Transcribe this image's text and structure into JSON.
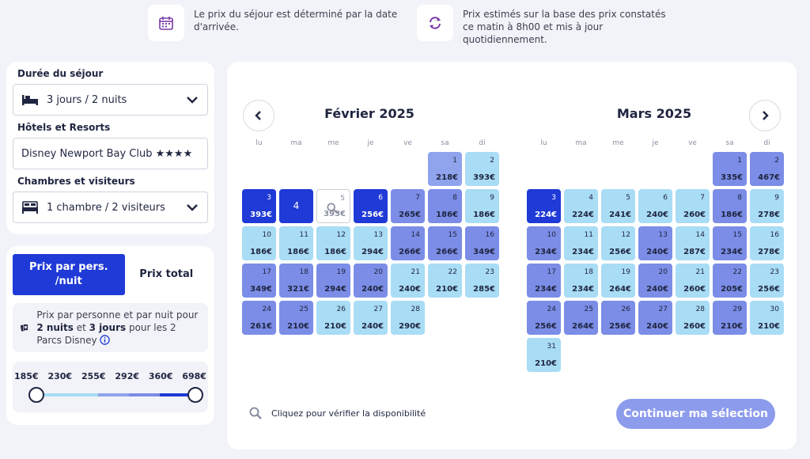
{
  "info": {
    "arrival_text": "Le prix du séjour est déterminé par la date d'arrivée.",
    "estimate_text": "Prix estimés sur la base des prix constatés ce matin à 8h00 et mis à jour quotidiennement."
  },
  "filters": {
    "duration_label": "Durée du séjour",
    "duration_value": "3 jours / 2 nuits",
    "hotel_label": "Hôtels et Resorts",
    "hotel_value": "Disney Newport Bay Club ★★★★",
    "rooms_label": "Chambres et visiteurs",
    "rooms_value": "1 chambre / 2 visiteurs"
  },
  "pricing": {
    "per_person_label": "Prix par pers. /nuit",
    "total_label": "Prix total",
    "explain_prefix": "Prix par personne et par nuit pour ",
    "explain_nights": "2 nuits",
    "explain_mid": " et ",
    "explain_days": "3 jours",
    "explain_suffix": " pour les 2 Parcs Disney",
    "slider_ticks": [
      "185€",
      "230€",
      "255€",
      "292€",
      "360€",
      "698€"
    ],
    "slider_range": [
      185,
      698
    ],
    "slider_colors": [
      "#a9dcf5",
      "#a9dcf5",
      "#8fa4ec",
      "#7b8de6",
      "#1f3ad6"
    ]
  },
  "calendar": {
    "weekdays": [
      "lu",
      "ma",
      "me",
      "je",
      "ve",
      "sa",
      "di"
    ],
    "months": [
      {
        "title": "Février 2025",
        "offset": 5,
        "days": [
          {
            "d": "1",
            "p": "218€",
            "c": "c2"
          },
          {
            "d": "2",
            "p": "393€",
            "c": "c1"
          },
          {
            "d": "3",
            "p": "393€",
            "c": "c4"
          },
          {
            "d": "4",
            "p": "",
            "c": "c4 big"
          },
          {
            "d": "5",
            "p": "393€",
            "c": "sel"
          },
          {
            "d": "6",
            "p": "256€",
            "c": "c4"
          },
          {
            "d": "7",
            "p": "265€",
            "c": "c3"
          },
          {
            "d": "8",
            "p": "186€",
            "c": "c3"
          },
          {
            "d": "9",
            "p": "186€",
            "c": "c1"
          },
          {
            "d": "10",
            "p": "186€",
            "c": "c1"
          },
          {
            "d": "11",
            "p": "186€",
            "c": "c1"
          },
          {
            "d": "12",
            "p": "186€",
            "c": "c1"
          },
          {
            "d": "13",
            "p": "294€",
            "c": "c1"
          },
          {
            "d": "14",
            "p": "266€",
            "c": "c3"
          },
          {
            "d": "15",
            "p": "266€",
            "c": "c3"
          },
          {
            "d": "16",
            "p": "349€",
            "c": "c3"
          },
          {
            "d": "17",
            "p": "349€",
            "c": "c3"
          },
          {
            "d": "18",
            "p": "321€",
            "c": "c3"
          },
          {
            "d": "19",
            "p": "294€",
            "c": "c3"
          },
          {
            "d": "20",
            "p": "240€",
            "c": "c3"
          },
          {
            "d": "21",
            "p": "240€",
            "c": "c1"
          },
          {
            "d": "22",
            "p": "210€",
            "c": "c1"
          },
          {
            "d": "23",
            "p": "285€",
            "c": "c1"
          },
          {
            "d": "24",
            "p": "261€",
            "c": "c3"
          },
          {
            "d": "25",
            "p": "210€",
            "c": "c3"
          },
          {
            "d": "26",
            "p": "210€",
            "c": "c1"
          },
          {
            "d": "27",
            "p": "240€",
            "c": "c1"
          },
          {
            "d": "28",
            "p": "290€",
            "c": "c1"
          }
        ]
      },
      {
        "title": "Mars 2025",
        "offset": 5,
        "days": [
          {
            "d": "1",
            "p": "335€",
            "c": "c3"
          },
          {
            "d": "2",
            "p": "467€",
            "c": "c3"
          },
          {
            "d": "3",
            "p": "224€",
            "c": "c4"
          },
          {
            "d": "4",
            "p": "224€",
            "c": "c1"
          },
          {
            "d": "5",
            "p": "241€",
            "c": "c1"
          },
          {
            "d": "6",
            "p": "240€",
            "c": "c1"
          },
          {
            "d": "7",
            "p": "260€",
            "c": "c1"
          },
          {
            "d": "8",
            "p": "186€",
            "c": "c3"
          },
          {
            "d": "9",
            "p": "278€",
            "c": "c1"
          },
          {
            "d": "10",
            "p": "234€",
            "c": "c3"
          },
          {
            "d": "11",
            "p": "234€",
            "c": "c1"
          },
          {
            "d": "12",
            "p": "256€",
            "c": "c1"
          },
          {
            "d": "13",
            "p": "240€",
            "c": "c3"
          },
          {
            "d": "14",
            "p": "287€",
            "c": "c1"
          },
          {
            "d": "15",
            "p": "234€",
            "c": "c3"
          },
          {
            "d": "16",
            "p": "278€",
            "c": "c1"
          },
          {
            "d": "17",
            "p": "234€",
            "c": "c3"
          },
          {
            "d": "18",
            "p": "234€",
            "c": "c1"
          },
          {
            "d": "19",
            "p": "264€",
            "c": "c1"
          },
          {
            "d": "20",
            "p": "240€",
            "c": "c3"
          },
          {
            "d": "21",
            "p": "260€",
            "c": "c1"
          },
          {
            "d": "22",
            "p": "205€",
            "c": "c3"
          },
          {
            "d": "23",
            "p": "256€",
            "c": "c1"
          },
          {
            "d": "24",
            "p": "256€",
            "c": "c3"
          },
          {
            "d": "25",
            "p": "264€",
            "c": "c3"
          },
          {
            "d": "26",
            "p": "256€",
            "c": "c3"
          },
          {
            "d": "27",
            "p": "240€",
            "c": "c3"
          },
          {
            "d": "28",
            "p": "260€",
            "c": "c1"
          },
          {
            "d": "29",
            "p": "210€",
            "c": "c3"
          },
          {
            "d": "30",
            "p": "210€",
            "c": "c1"
          },
          {
            "d": "31",
            "p": "210€",
            "c": "c1"
          }
        ]
      }
    ]
  },
  "footer": {
    "check_text": "Cliquez pour vérifier la disponibilité",
    "cta_label": "Continuer ma sélection"
  }
}
